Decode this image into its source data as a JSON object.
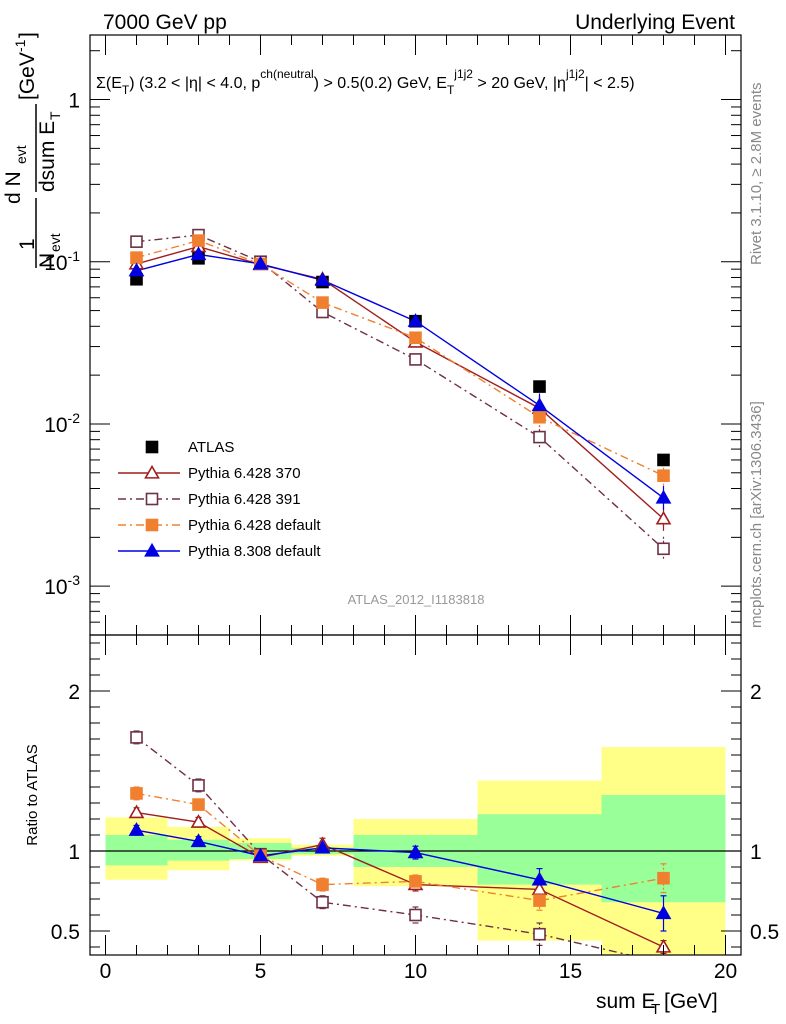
{
  "header": {
    "left": "7000 GeV pp",
    "right": "Underlying Event"
  },
  "side_labels": {
    "rivet": "Rivet 3.1.10, ≥ 2.8M events",
    "mcplots": "mcplots.cern.ch [arXiv:1306.3436]"
  },
  "plot_title": "Σ(E_T) (3.2 < |η| < 4.0, p^ch(neutral) > 0.5(0.2) GeV, E_T^j1j2 > 20 GeV, |η^j1j2| < 2.5)",
  "watermark": "ATLAS_2012_I1183818",
  "chart_data": [
    {
      "type": "line",
      "panel": "main",
      "ylabel": "1/N_evt dN_evt/dsum E_T [GeV^-1]",
      "yscale": "log",
      "ylim": [
        0.0005,
        2.5
      ],
      "xlim": [
        -0.5,
        20.5
      ],
      "y_ticks": [
        {
          "value": 1,
          "label": "1"
        },
        {
          "value": 0.1,
          "label": "10^-1"
        },
        {
          "value": 0.01,
          "label": "10^-2"
        },
        {
          "value": 0.001,
          "label": "10^-3"
        }
      ],
      "x": [
        1,
        3,
        5,
        7,
        10,
        14,
        18
      ],
      "legend_position": "lower-left",
      "series": [
        {
          "name": "ATLAS",
          "color": "#000000",
          "marker": "square-filled",
          "style": "none",
          "values": [
            0.078,
            0.105,
            0.1,
            0.075,
            0.043,
            0.017,
            0.006
          ]
        },
        {
          "name": "Pythia 6.428 370",
          "color": "#a01e1e",
          "marker": "triangle-open",
          "style": "solid",
          "values": [
            0.097,
            0.124,
            0.096,
            0.078,
            0.032,
            0.0125,
            0.0026
          ]
        },
        {
          "name": "Pythia 6.428 391",
          "color": "#6e3046",
          "marker": "square-open",
          "style": "dashdot",
          "values": [
            0.133,
            0.146,
            0.1,
            0.049,
            0.025,
            0.0083,
            0.0017
          ]
        },
        {
          "name": "Pythia 6.428 default",
          "color": "#f08030",
          "marker": "square-filled",
          "style": "dashdot",
          "values": [
            0.106,
            0.135,
            0.097,
            0.056,
            0.034,
            0.011,
            0.0048
          ]
        },
        {
          "name": "Pythia 8.308 default",
          "color": "#0000e0",
          "marker": "triangle-filled",
          "style": "solid",
          "values": [
            0.088,
            0.111,
            0.097,
            0.077,
            0.043,
            0.013,
            0.0035
          ]
        }
      ]
    },
    {
      "type": "line",
      "panel": "ratio",
      "ylabel": "Ratio to ATLAS",
      "xlabel": "sum E_T [GeV]",
      "ylim": [
        0.35,
        2.35
      ],
      "xlim": [
        -0.5,
        20.5
      ],
      "y_ticks": [
        {
          "value": 2,
          "label": "2"
        },
        {
          "value": 1,
          "label": "1"
        },
        {
          "value": 0.5,
          "label": "0.5"
        }
      ],
      "x_ticks": [
        0,
        5,
        10,
        15,
        20
      ],
      "x": [
        1,
        3,
        5,
        7,
        10,
        14,
        18
      ],
      "bands": {
        "bin_edges": [
          0,
          2,
          4,
          6,
          8,
          12,
          16,
          20
        ],
        "green_lo": [
          0.91,
          0.94,
          0.95,
          0.98,
          0.9,
          0.79,
          0.68
        ],
        "green_hi": [
          1.1,
          1.07,
          1.05,
          1.02,
          1.1,
          1.23,
          1.35
        ],
        "yellow_lo": [
          0.82,
          0.88,
          0.94,
          0.97,
          0.78,
          0.44,
          0.35
        ],
        "yellow_hi": [
          1.21,
          1.15,
          1.08,
          1.04,
          1.2,
          1.44,
          1.65
        ],
        "green_color": "#99ff99",
        "yellow_color": "#ffff88"
      },
      "series": [
        {
          "name": "Pythia 6.428 370",
          "color": "#a01e1e",
          "marker": "triangle-open",
          "style": "solid",
          "values": [
            1.24,
            1.18,
            0.96,
            1.04,
            0.79,
            0.76,
            0.4
          ],
          "errors": [
            0.03,
            0.03,
            0.02,
            0.04,
            0.04,
            0.05,
            0.04
          ]
        },
        {
          "name": "Pythia 6.428 391",
          "color": "#6e3046",
          "marker": "square-open",
          "style": "dashdot",
          "values": [
            1.71,
            1.41,
            0.98,
            0.68,
            0.6,
            0.48,
            0.3
          ],
          "errors": [
            0.04,
            0.04,
            0.03,
            0.04,
            0.05,
            0.07,
            0.08
          ]
        },
        {
          "name": "Pythia 6.428 default",
          "color": "#f08030",
          "marker": "square-filled",
          "style": "dashdot",
          "values": [
            1.36,
            1.29,
            0.97,
            0.79,
            0.81,
            0.69,
            0.83
          ],
          "errors": [
            0.04,
            0.03,
            0.02,
            0.04,
            0.04,
            0.06,
            0.09
          ]
        },
        {
          "name": "Pythia 8.308 default",
          "color": "#0000e0",
          "marker": "triangle-filled",
          "style": "solid",
          "values": [
            1.13,
            1.06,
            0.97,
            1.02,
            0.99,
            0.82,
            0.61
          ],
          "errors": [
            0.03,
            0.03,
            0.02,
            0.03,
            0.04,
            0.07,
            0.11
          ]
        }
      ]
    }
  ]
}
